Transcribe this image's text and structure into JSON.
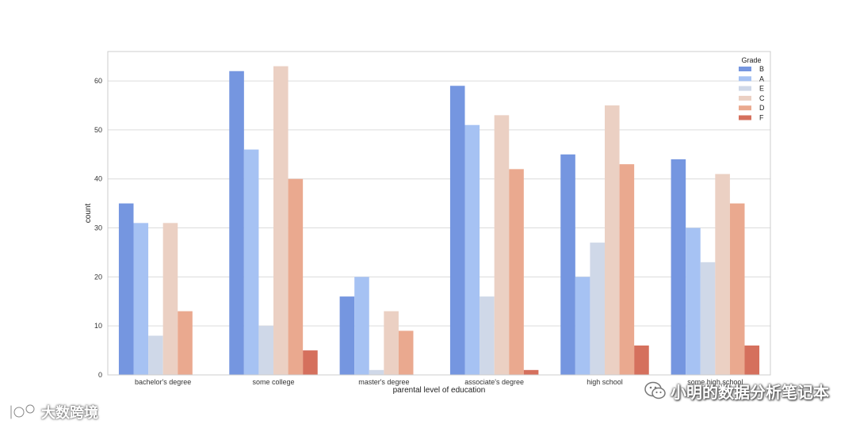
{
  "chart_data": {
    "type": "bar",
    "xlabel": "parental level of education",
    "ylabel": "count",
    "categories": [
      "bachelor's degree",
      "some college",
      "master's degree",
      "associate's degree",
      "high school",
      "some high school"
    ],
    "ylim": [
      0,
      66
    ],
    "yticks": [
      0,
      10,
      20,
      30,
      40,
      50,
      60
    ],
    "grid": true,
    "legend": {
      "title": "Grade",
      "position": "top-right"
    },
    "series": [
      {
        "name": "B",
        "color": "#7596e0",
        "values": [
          35,
          62,
          16,
          59,
          45,
          44
        ]
      },
      {
        "name": "A",
        "color": "#a6c2f3",
        "values": [
          31,
          46,
          20,
          51,
          20,
          30
        ]
      },
      {
        "name": "E",
        "color": "#cfd8e8",
        "values": [
          8,
          10,
          1,
          16,
          27,
          23
        ]
      },
      {
        "name": "C",
        "color": "#ebd0c3",
        "values": [
          31,
          63,
          13,
          53,
          55,
          41
        ]
      },
      {
        "name": "D",
        "color": "#eaa98f",
        "values": [
          13,
          40,
          9,
          42,
          43,
          35
        ]
      },
      {
        "name": "F",
        "color": "#d5705d",
        "values": [
          0,
          5,
          0,
          1,
          6,
          6
        ]
      }
    ]
  },
  "watermarks": {
    "right_text": "小明的数据分析笔记本",
    "right_icon": "wechat-icon",
    "left_text": "大数跨境",
    "left_icon": "logo-icon"
  }
}
